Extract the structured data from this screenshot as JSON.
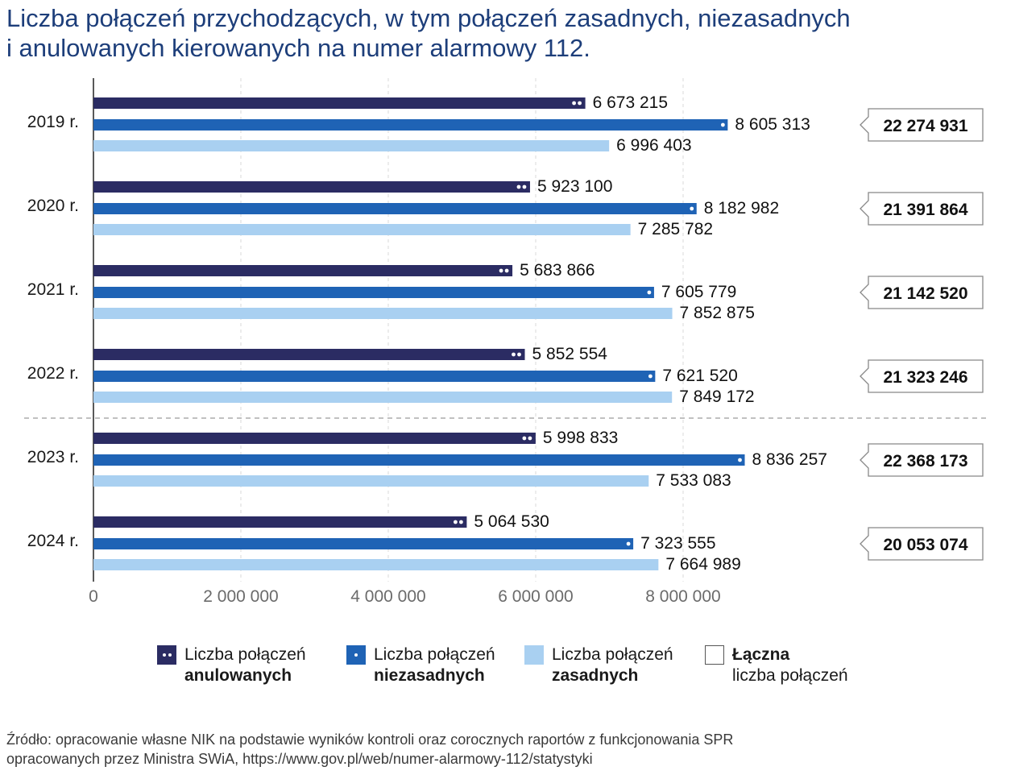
{
  "title": {
    "line1": "Liczba połączeń przychodzących, w tym połączeń zasadnych, niezasadnych",
    "line2": "i anulowanych kierowanych na numer alarmowy 112."
  },
  "colors": {
    "anulowane": "#2b2c63",
    "niezasadne": "#1f63b5",
    "zasadne": "#a9d0f1",
    "title": "#1d3e7a",
    "axis_text": "#6b6b6b"
  },
  "chart_data": {
    "type": "bar",
    "orientation": "horizontal",
    "categories": [
      "2019 r.",
      "2020 r.",
      "2021 r.",
      "2022 r.",
      "2023 r.",
      "2024 r."
    ],
    "series": [
      {
        "name": "Liczba połączeń anulowanych",
        "values": [
          6673215,
          5923100,
          5683866,
          5852554,
          5998833,
          5064530
        ],
        "labels": [
          "6 673 215",
          "5 923 100",
          "5 683 866",
          "5 852 554",
          "5 998 833",
          "5 064 530"
        ]
      },
      {
        "name": "Liczba połączeń niezasadnych",
        "values": [
          8605313,
          8182982,
          7605779,
          7621520,
          8836257,
          7323555
        ],
        "labels": [
          "8 605 313",
          "8 182 982",
          "7 605 779",
          "7 621 520",
          "8 836 257",
          "7 323 555"
        ]
      },
      {
        "name": "Liczba połączeń zasadnych",
        "values": [
          6996403,
          7285782,
          7852875,
          7849172,
          7533083,
          7664989
        ],
        "labels": [
          "6 996 403",
          "7 285 782",
          "7 852 875",
          "7 849 172",
          "7 533 083",
          "7 664 989"
        ]
      }
    ],
    "totals": {
      "name": "Łączna liczba połączeń",
      "values": [
        22274931,
        21391864,
        21142520,
        21323246,
        22368173,
        20053074
      ],
      "labels": [
        "22 274 931",
        "21 391 864",
        "21 142 520",
        "21 323 246",
        "22 368 173",
        "20 053 074"
      ]
    },
    "xlim": [
      0,
      10000000
    ],
    "xticks": [
      0,
      2000000,
      4000000,
      6000000,
      8000000
    ],
    "xtick_labels": [
      "0",
      "2 000 000",
      "4 000 000",
      "6 000 000",
      "8 000 000"
    ],
    "grid": true,
    "separator_after_category": "2022 r.",
    "legend_position": "bottom"
  },
  "legend": [
    {
      "line1": "Liczba połączeń",
      "line2": "anulowanych",
      "bold_line": 2
    },
    {
      "line1": "Liczba połączeń",
      "line2": "niezasadnych",
      "bold_line": 2
    },
    {
      "line1": "Liczba połączeń",
      "line2": "zasadnych",
      "bold_line": 2
    },
    {
      "line1": "Łączna",
      "line2": "liczba połączeń",
      "bold_line": 1
    }
  ],
  "source": {
    "line1": "Źródło: opracowanie własne NIK na podstawie wyników kontroli oraz corocznych raportów z funkcjonowania SPR",
    "line2": "opracowanych przez Ministra SWiA, https://www.gov.pl/web/numer-alarmowy-112/statystyki"
  }
}
